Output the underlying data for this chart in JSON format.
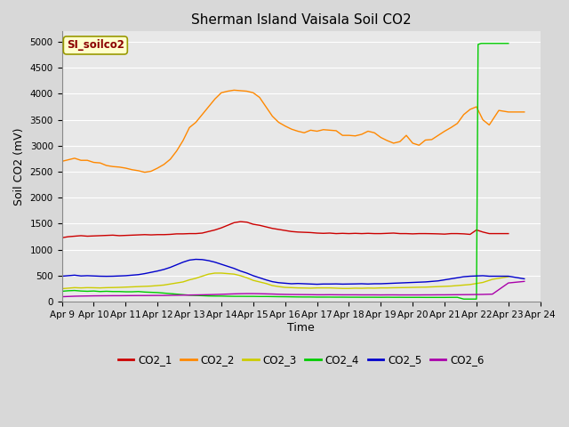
{
  "title": "Sherman Island Vaisala Soil CO2",
  "ylabel": "Soil CO2 (mV)",
  "xlabel": "Time",
  "legend_label": "SI_soilco2",
  "ylim": [
    0,
    5200
  ],
  "yticks": [
    0,
    500,
    1000,
    1500,
    2000,
    2500,
    3000,
    3500,
    4000,
    4500,
    5000
  ],
  "xtick_labels": [
    "Apr 9",
    "Apr 10",
    "Apr 11",
    "Apr 12",
    "Apr 13",
    "Apr 14",
    "Apr 15",
    "Apr 16",
    "Apr 17",
    "Apr 18",
    "Apr 19",
    "Apr 20",
    "Apr 21",
    "Apr 22",
    "Apr 23",
    "Apr 24"
  ],
  "colors": {
    "CO2_1": "#cc0000",
    "CO2_2": "#ff8800",
    "CO2_3": "#cccc00",
    "CO2_4": "#00cc00",
    "CO2_5": "#0000cc",
    "CO2_6": "#aa00aa"
  },
  "background_color": "#e8e8e8",
  "grid_color": "#ffffff",
  "series": {
    "CO2_1": {
      "x": [
        0,
        0.2,
        0.4,
        0.6,
        0.8,
        1.0,
        1.2,
        1.4,
        1.6,
        1.8,
        2.0,
        2.2,
        2.4,
        2.6,
        2.8,
        3.0,
        3.2,
        3.4,
        3.6,
        3.8,
        4.0,
        4.2,
        4.4,
        4.6,
        4.8,
        5.0,
        5.2,
        5.4,
        5.6,
        5.8,
        6.0,
        6.2,
        6.4,
        6.6,
        6.8,
        7.0,
        7.2,
        7.4,
        7.6,
        7.8,
        8.0,
        8.2,
        8.4,
        8.6,
        8.8,
        9.0,
        9.2,
        9.4,
        9.6,
        9.8,
        10.0,
        10.2,
        10.4,
        10.6,
        10.8,
        11.0,
        11.2,
        11.4,
        11.6,
        11.8,
        12.0,
        12.2,
        12.4,
        12.6,
        12.8,
        13.0,
        13.2,
        13.4,
        13.5,
        13.7,
        14.0
      ],
      "y": [
        1230,
        1250,
        1260,
        1270,
        1260,
        1265,
        1270,
        1275,
        1280,
        1270,
        1275,
        1280,
        1285,
        1290,
        1285,
        1290,
        1290,
        1295,
        1305,
        1305,
        1310,
        1310,
        1320,
        1350,
        1380,
        1420,
        1470,
        1520,
        1540,
        1530,
        1490,
        1470,
        1440,
        1410,
        1390,
        1370,
        1350,
        1340,
        1335,
        1330,
        1320,
        1315,
        1320,
        1310,
        1315,
        1310,
        1315,
        1310,
        1315,
        1310,
        1310,
        1315,
        1320,
        1310,
        1310,
        1305,
        1310,
        1310,
        1308,
        1305,
        1300,
        1310,
        1310,
        1305,
        1295,
        1380,
        1340,
        1310,
        1310,
        1310,
        1310
      ]
    },
    "CO2_2": {
      "x": [
        0,
        0.2,
        0.4,
        0.6,
        0.8,
        1.0,
        1.2,
        1.4,
        1.6,
        1.8,
        2.0,
        2.2,
        2.4,
        2.6,
        2.8,
        3.0,
        3.2,
        3.4,
        3.6,
        3.8,
        4.0,
        4.2,
        4.4,
        4.6,
        4.8,
        5.0,
        5.2,
        5.4,
        5.6,
        5.8,
        6.0,
        6.2,
        6.4,
        6.6,
        6.8,
        7.0,
        7.2,
        7.4,
        7.6,
        7.8,
        8.0,
        8.2,
        8.4,
        8.6,
        8.8,
        9.0,
        9.2,
        9.4,
        9.6,
        9.8,
        10.0,
        10.2,
        10.4,
        10.6,
        10.8,
        11.0,
        11.2,
        11.4,
        11.6,
        11.8,
        12.0,
        12.2,
        12.4,
        12.6,
        12.8,
        13.0,
        13.2,
        13.4,
        13.7,
        14.0,
        14.5
      ],
      "y": [
        2700,
        2730,
        2760,
        2720,
        2720,
        2680,
        2670,
        2620,
        2600,
        2590,
        2570,
        2540,
        2520,
        2490,
        2510,
        2570,
        2640,
        2740,
        2900,
        3100,
        3350,
        3450,
        3600,
        3750,
        3900,
        4020,
        4050,
        4070,
        4060,
        4050,
        4020,
        3930,
        3750,
        3570,
        3450,
        3380,
        3320,
        3280,
        3250,
        3300,
        3280,
        3310,
        3300,
        3290,
        3200,
        3200,
        3190,
        3220,
        3280,
        3250,
        3160,
        3100,
        3050,
        3080,
        3200,
        3050,
        3010,
        3110,
        3120,
        3200,
        3280,
        3350,
        3430,
        3600,
        3700,
        3750,
        3500,
        3400,
        3680,
        3650,
        3650
      ]
    },
    "CO2_3": {
      "x": [
        0,
        0.2,
        0.4,
        0.6,
        0.8,
        1.0,
        1.2,
        1.4,
        1.6,
        1.8,
        2.0,
        2.2,
        2.4,
        2.6,
        2.8,
        3.0,
        3.2,
        3.4,
        3.6,
        3.8,
        4.0,
        4.2,
        4.4,
        4.6,
        4.8,
        5.0,
        5.2,
        5.4,
        5.6,
        5.8,
        6.0,
        6.2,
        6.4,
        6.6,
        6.8,
        7.0,
        7.2,
        7.4,
        7.6,
        7.8,
        8.0,
        8.2,
        8.4,
        8.6,
        8.8,
        9.0,
        9.2,
        9.4,
        9.6,
        9.8,
        10.0,
        10.2,
        10.4,
        10.6,
        10.8,
        11.0,
        11.2,
        11.4,
        11.6,
        11.8,
        12.0,
        12.2,
        12.4,
        12.6,
        12.8,
        13.0,
        13.2,
        13.5,
        14.0
      ],
      "y": [
        250,
        260,
        270,
        265,
        270,
        268,
        265,
        270,
        272,
        275,
        280,
        285,
        290,
        295,
        300,
        310,
        320,
        340,
        360,
        380,
        420,
        450,
        490,
        530,
        550,
        550,
        540,
        530,
        500,
        460,
        410,
        380,
        350,
        310,
        290,
        275,
        270,
        265,
        263,
        260,
        265,
        265,
        265,
        260,
        255,
        255,
        260,
        258,
        262,
        260,
        265,
        265,
        268,
        270,
        272,
        275,
        278,
        280,
        285,
        290,
        295,
        300,
        310,
        320,
        330,
        350,
        370,
        430,
        480
      ]
    },
    "CO2_4": {
      "x": [
        0,
        0.2,
        0.4,
        0.6,
        0.8,
        1.0,
        1.2,
        1.4,
        1.6,
        1.8,
        2.0,
        2.2,
        2.4,
        2.6,
        2.8,
        3.0,
        3.2,
        3.4,
        3.6,
        3.8,
        4.0,
        4.2,
        4.4,
        4.6,
        4.8,
        5.0,
        5.2,
        5.4,
        5.6,
        5.8,
        6.0,
        6.2,
        6.4,
        6.6,
        6.8,
        7.0,
        7.2,
        7.4,
        7.6,
        7.8,
        8.0,
        8.2,
        8.4,
        8.6,
        8.8,
        9.0,
        9.2,
        9.4,
        9.6,
        9.8,
        10.0,
        10.2,
        10.4,
        10.6,
        10.8,
        11.0,
        11.2,
        11.4,
        11.6,
        11.8,
        12.0,
        12.2,
        12.4,
        12.6,
        12.8,
        13.0,
        13.05,
        13.1,
        13.15,
        14.0
      ],
      "y": [
        200,
        210,
        215,
        205,
        200,
        205,
        195,
        200,
        195,
        195,
        190,
        190,
        195,
        185,
        180,
        175,
        165,
        155,
        145,
        135,
        125,
        120,
        115,
        110,
        108,
        108,
        105,
        103,
        103,
        102,
        102,
        100,
        100,
        98,
        96,
        95,
        93,
        91,
        90,
        90,
        88,
        88,
        88,
        87,
        87,
        86,
        86,
        85,
        85,
        85,
        84,
        85,
        84,
        84,
        83,
        83,
        83,
        82,
        82,
        82,
        82,
        83,
        84,
        50,
        50,
        50,
        4950,
        4960,
        4970,
        4970
      ]
    },
    "CO2_5": {
      "x": [
        0,
        0.2,
        0.4,
        0.6,
        0.8,
        1.0,
        1.2,
        1.4,
        1.6,
        1.8,
        2.0,
        2.2,
        2.4,
        2.6,
        2.8,
        3.0,
        3.2,
        3.4,
        3.6,
        3.8,
        4.0,
        4.2,
        4.4,
        4.6,
        4.8,
        5.0,
        5.2,
        5.4,
        5.6,
        5.8,
        6.0,
        6.2,
        6.4,
        6.6,
        6.8,
        7.0,
        7.2,
        7.4,
        7.6,
        7.8,
        8.0,
        8.2,
        8.4,
        8.6,
        8.8,
        9.0,
        9.2,
        9.4,
        9.6,
        9.8,
        10.0,
        10.2,
        10.4,
        10.6,
        10.8,
        11.0,
        11.2,
        11.4,
        11.6,
        11.8,
        12.0,
        12.2,
        12.4,
        12.6,
        12.8,
        13.0,
        13.2,
        13.4,
        13.7,
        14.0,
        14.5
      ],
      "y": [
        490,
        500,
        510,
        495,
        500,
        495,
        490,
        488,
        490,
        495,
        500,
        510,
        520,
        540,
        565,
        590,
        620,
        660,
        710,
        760,
        800,
        815,
        810,
        790,
        760,
        720,
        680,
        640,
        590,
        550,
        500,
        460,
        420,
        385,
        365,
        355,
        345,
        350,
        345,
        340,
        335,
        340,
        340,
        342,
        338,
        340,
        342,
        345,
        340,
        345,
        345,
        350,
        355,
        360,
        365,
        370,
        375,
        380,
        390,
        400,
        420,
        440,
        460,
        480,
        490,
        495,
        500,
        490,
        490,
        490,
        440
      ]
    },
    "CO2_6": {
      "x": [
        0,
        0.2,
        0.4,
        0.6,
        0.8,
        1.0,
        1.2,
        1.4,
        1.6,
        1.8,
        2.0,
        2.2,
        2.4,
        2.6,
        2.8,
        3.0,
        3.2,
        3.4,
        3.6,
        3.8,
        4.0,
        4.2,
        4.4,
        4.6,
        4.8,
        5.0,
        5.2,
        5.4,
        5.6,
        5.8,
        6.0,
        6.2,
        6.4,
        6.6,
        6.8,
        7.0,
        7.2,
        7.4,
        7.6,
        7.8,
        8.0,
        8.2,
        8.4,
        8.6,
        8.8,
        9.0,
        9.2,
        9.4,
        9.6,
        9.8,
        10.0,
        10.2,
        10.4,
        10.6,
        10.8,
        11.0,
        11.2,
        11.4,
        11.6,
        11.8,
        12.0,
        12.2,
        12.4,
        12.6,
        12.8,
        13.0,
        13.2,
        13.5,
        14.0,
        14.5
      ],
      "y": [
        95,
        100,
        105,
        108,
        110,
        112,
        113,
        114,
        115,
        115,
        116,
        117,
        118,
        118,
        119,
        120,
        120,
        122,
        124,
        126,
        128,
        130,
        132,
        135,
        138,
        142,
        146,
        150,
        153,
        155,
        155,
        153,
        150,
        147,
        143,
        140,
        138,
        137,
        136,
        135,
        133,
        133,
        134,
        133,
        132,
        132,
        132,
        131,
        131,
        131,
        130,
        131,
        131,
        130,
        130,
        130,
        130,
        131,
        131,
        132,
        132,
        133,
        134,
        135,
        136,
        138,
        140,
        145,
        360,
        390
      ]
    }
  }
}
